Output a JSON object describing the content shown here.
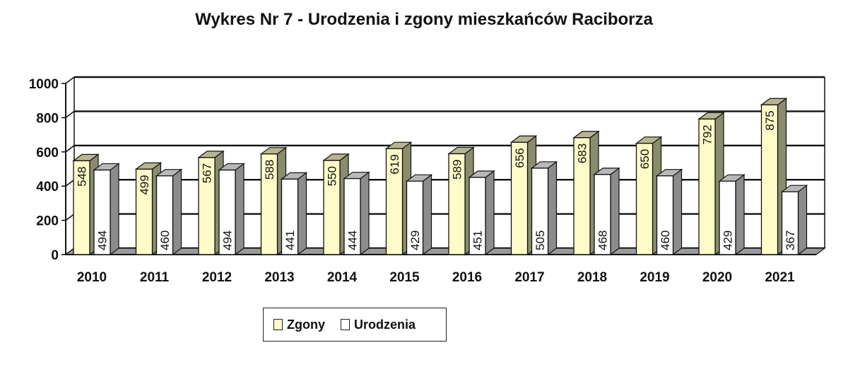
{
  "chart_data": {
    "type": "bar",
    "title": "Wykres Nr 7 - Urodzenia i zgony mieszkańców Raciborza",
    "categories": [
      "2010",
      "2011",
      "2012",
      "2013",
      "2014",
      "2015",
      "2016",
      "2017",
      "2018",
      "2019",
      "2020",
      "2021"
    ],
    "series": [
      {
        "name": "Zgony",
        "color": "#fdfcc8",
        "values": [
          548,
          499,
          567,
          588,
          550,
          619,
          589,
          656,
          683,
          650,
          792,
          875
        ]
      },
      {
        "name": "Urodzenia",
        "color": "#ffffff",
        "values": [
          494,
          460,
          494,
          441,
          444,
          429,
          451,
          505,
          468,
          460,
          429,
          367
        ]
      }
    ],
    "ylim": [
      0,
      1000
    ],
    "yticks": [
      0,
      200,
      400,
      600,
      800,
      1000
    ],
    "grid": true,
    "legend_position": "bottom",
    "style": "3d-clustered-column"
  }
}
